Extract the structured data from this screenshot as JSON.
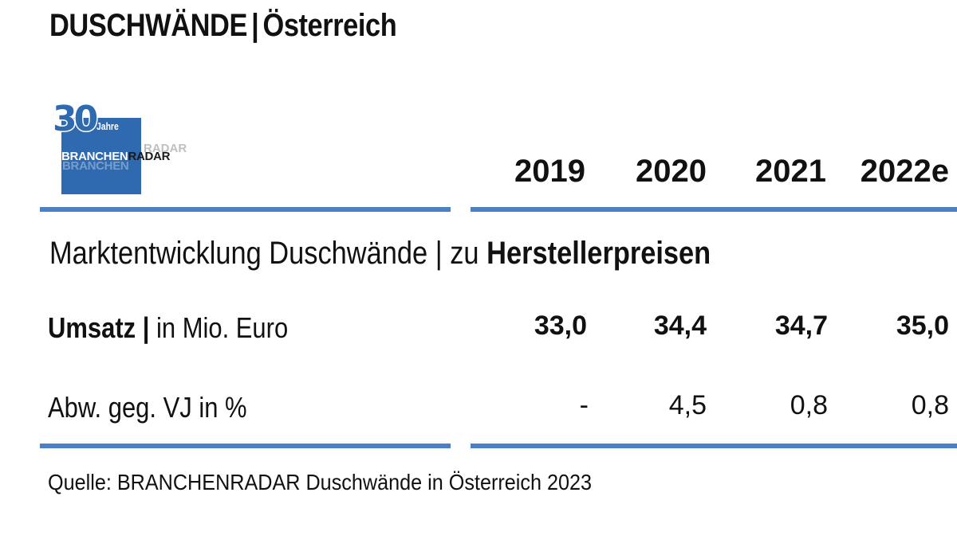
{
  "header": {
    "title_main": "DUSCHWÄNDE",
    "title_sep": "|",
    "title_region": "Österreich"
  },
  "logo": {
    "number": "30",
    "jahre": "Jahre",
    "brand_part1": "BRANCHEN",
    "brand_part2": "RADAR",
    "color": "#2f6ab0"
  },
  "chart_data": {
    "type": "table",
    "title": "Marktentwicklung Duschwände | zu Herstellerpreisen",
    "subtitle_prefix": "Marktentwicklung Duschwände | zu ",
    "subtitle_bold": "Herstellerpreisen",
    "columns": [
      "2019",
      "2020",
      "2021",
      "2022e"
    ],
    "rows": [
      {
        "label_bold": "Umsatz |",
        "label_rest": " in Mio. Euro",
        "values": [
          "33,0",
          "34,4",
          "34,7",
          "35,0"
        ]
      },
      {
        "label_bold": "",
        "label_rest": "Abw. geg. VJ in %",
        "values": [
          "-",
          "4,5",
          "0,8",
          "0,8"
        ]
      }
    ],
    "accent_color": "#4c7fc4"
  },
  "footer": {
    "source": "Quelle: BRANCHENRADAR Duschwände in Österreich 2023"
  }
}
